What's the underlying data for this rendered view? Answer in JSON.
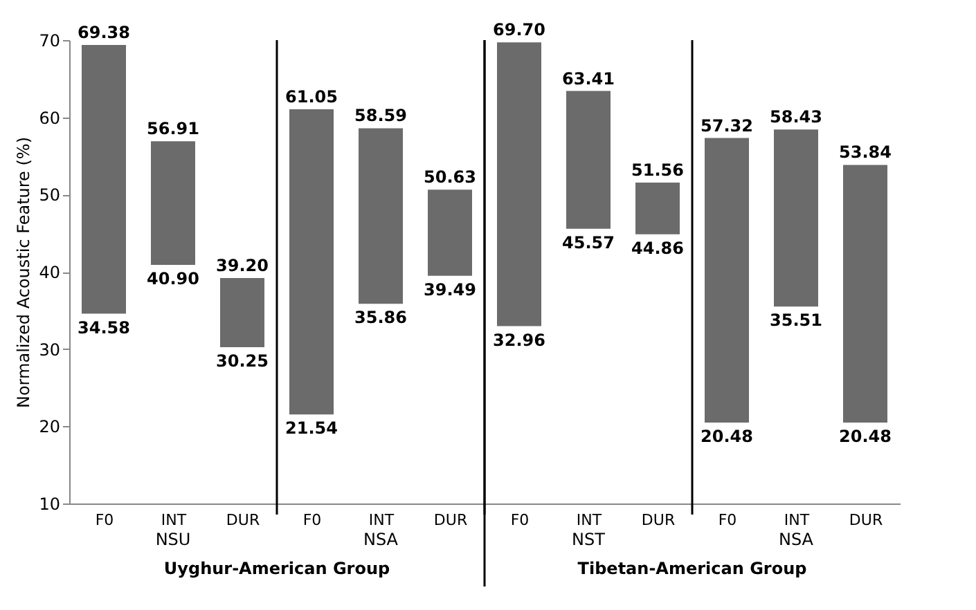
{
  "chart_data": {
    "type": "bar",
    "ylabel": "Normalized Acoustic Feature (%)",
    "categories": [
      "F0",
      "INT",
      "DUR",
      "F0",
      "INT",
      "DUR",
      "F0",
      "INT",
      "DUR",
      "F0",
      "INT",
      "DUR"
    ],
    "base": [
      34.58,
      40.9,
      30.25,
      21.54,
      35.86,
      39.49,
      32.96,
      45.57,
      44.86,
      20.48,
      35.51,
      20.48
    ],
    "values": [
      34.8,
      16.01,
      8.95,
      39.51,
      22.73,
      11.14,
      36.74,
      17.84,
      6.7,
      36.84,
      22.92,
      33.36
    ],
    "color": "#6b6b6b",
    "value_labels": [
      "69.38",
      "56.91",
      "39.20",
      "61.05",
      "58.59",
      "50.63",
      "69.70",
      "63.41",
      "51.56",
      "57.32",
      "58.43",
      "53.84"
    ],
    "annotations": [
      {
        "text": "34.58",
        "y": 34.58
      },
      {
        "text": "40.90",
        "y": 40.9
      },
      {
        "text": "30.25",
        "y": 30.25
      },
      {
        "text": "21.54",
        "y": 21.54
      },
      {
        "text": "35.86",
        "y": 35.86
      },
      {
        "text": "39.49",
        "y": 39.49
      },
      {
        "text": "32.96",
        "y": 32.96
      },
      {
        "text": "45.57",
        "y": 45.57
      },
      {
        "text": "44.86",
        "y": 44.86
      },
      {
        "text": "20.48",
        "y": 20.48
      },
      {
        "text": "35.51",
        "y": 35.51
      },
      {
        "text": "20.48",
        "y": 20.48
      },
      "NSU",
      "NSA",
      "NST",
      "NSA",
      "Uyghur-American Group",
      "Tibetan-American Group"
    ],
    "ylim": [
      10,
      70
    ],
    "yticks": [
      10,
      20,
      30,
      40,
      50,
      60,
      70
    ],
    "grid": false
  }
}
